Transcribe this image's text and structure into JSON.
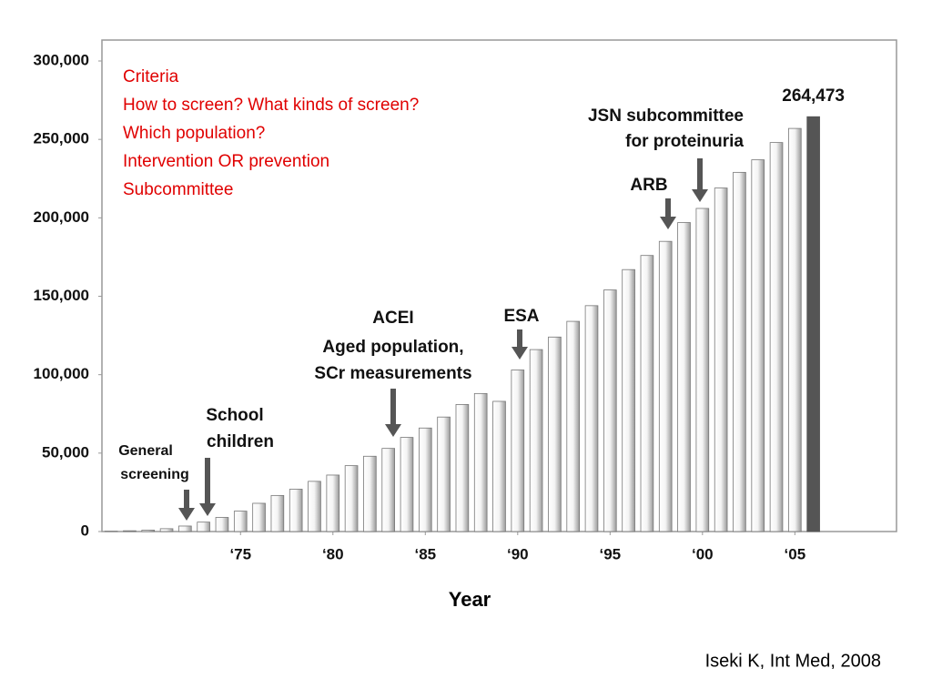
{
  "chart_data": {
    "type": "bar",
    "x": [
      1968,
      1969,
      1970,
      1971,
      1972,
      1973,
      1974,
      1975,
      1976,
      1977,
      1978,
      1979,
      1980,
      1981,
      1982,
      1983,
      1984,
      1985,
      1986,
      1987,
      1988,
      1989,
      1990,
      1991,
      1992,
      1993,
      1994,
      1995,
      1996,
      1997,
      1998,
      1999,
      2000,
      2001,
      2002,
      2003,
      2004,
      2005,
      2006
    ],
    "values": [
      200,
      500,
      900,
      1800,
      3500,
      6000,
      9000,
      13000,
      18000,
      23000,
      27000,
      32000,
      36000,
      42000,
      48000,
      53000,
      60000,
      66000,
      73000,
      81000,
      88000,
      83000,
      103000,
      116000,
      124000,
      134000,
      144000,
      154000,
      167000,
      176000,
      185000,
      197000,
      206000,
      219000,
      229000,
      237000,
      248000,
      257000,
      264473
    ],
    "value_labels": [
      null,
      null,
      null,
      null,
      null,
      null,
      null,
      null,
      null,
      null,
      null,
      null,
      null,
      null,
      null,
      null,
      null,
      null,
      null,
      null,
      null,
      null,
      null,
      null,
      null,
      null,
      null,
      null,
      null,
      null,
      null,
      null,
      null,
      null,
      null,
      null,
      null,
      null,
      "264,473"
    ],
    "color": "#d9d9d9",
    "last_color": "#555555",
    "xlim": [
      1967.5,
      2010.5
    ],
    "xticks": [
      {
        "value": 1975,
        "label": "‘75"
      },
      {
        "value": 1980,
        "label": "‘80"
      },
      {
        "value": 1985,
        "label": "‘85"
      },
      {
        "value": 1990,
        "label": "‘90"
      },
      {
        "value": 1995,
        "label": "‘95"
      },
      {
        "value": 2000,
        "label": "‘00"
      },
      {
        "value": 2005,
        "label": "‘05"
      }
    ],
    "ylim": [
      0,
      300000
    ],
    "yticks": [
      0,
      {
        "value": 50000,
        "label": "50,000"
      },
      {
        "value": 100000,
        "label": "100,000"
      },
      {
        "value": 150000,
        "label": "150,000"
      },
      {
        "value": 200000,
        "label": "200,000"
      },
      {
        "value": 250000,
        "label": "250,000"
      },
      {
        "value": 300000,
        "label": "300,000"
      }
    ],
    "x_label": "Year",
    "annotations": [
      "Criteria",
      "How to screen? What kinds of screen?",
      "Which population?",
      "Intervention OR prevention",
      "Subcommittee",
      "JSN subcommittee",
      "for proteinuria",
      "ARB",
      "ACEI",
      "Aged population,",
      "SCr measurements",
      "ESA",
      "School",
      "children",
      "General",
      "screening"
    ],
    "source": "Iseki K, Int Med, 2008"
  }
}
